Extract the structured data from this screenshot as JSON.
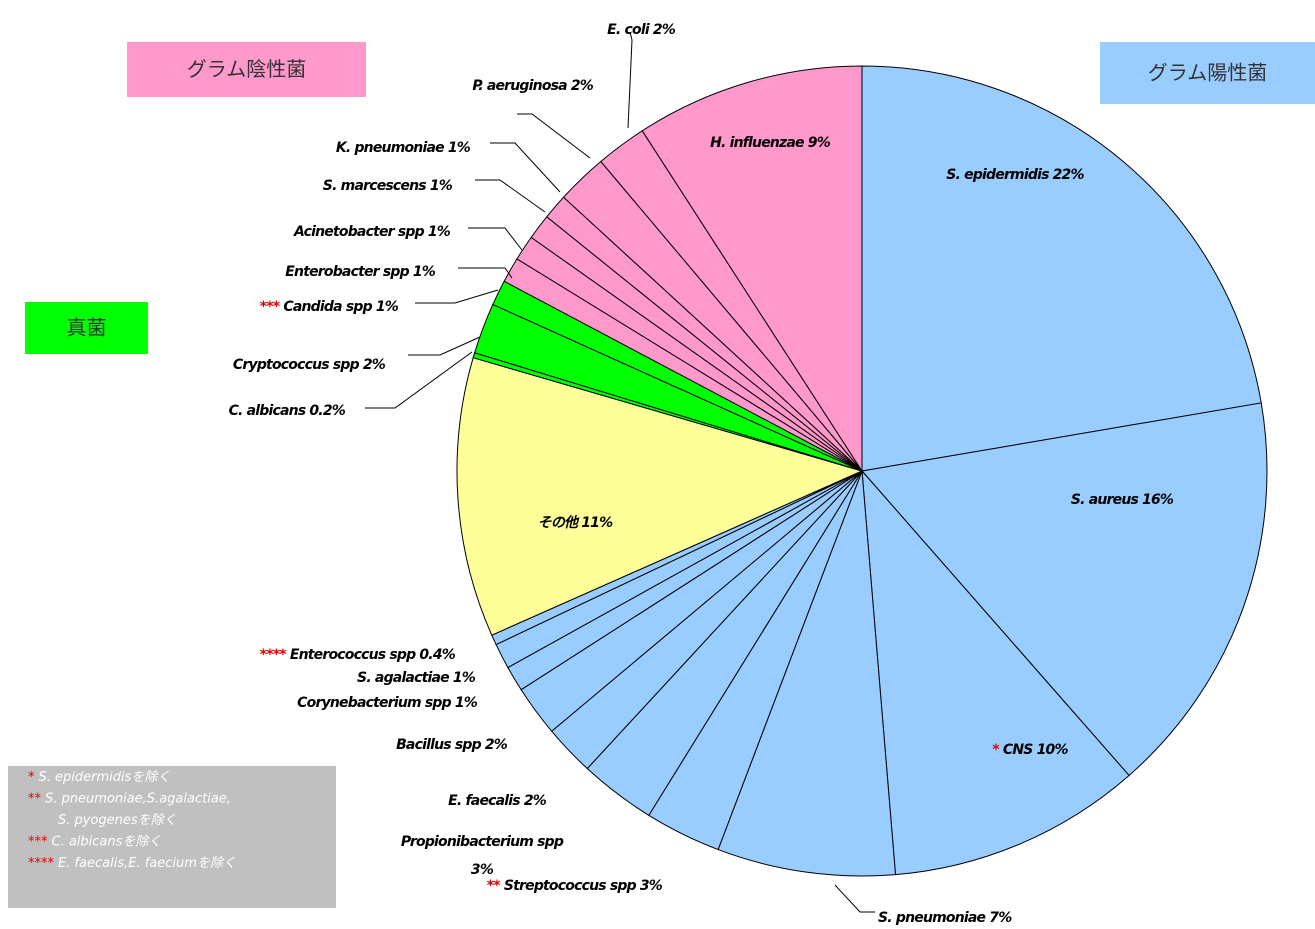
{
  "chart_data": {
    "type": "pie",
    "categories": [
      "S. epidermidis",
      "S. aureus",
      "CNS",
      "S. pneumoniae",
      "Streptococcus spp",
      "Propionibacterium spp",
      "E. faecalis",
      "Bacillus spp",
      "Corynebacterium spp",
      "S. agalactiae",
      "Enterococcus spp",
      "その他",
      "C. albicans",
      "Cryptococcus spp",
      "Candida spp",
      "Enterobacter spp",
      "Acinetobacter spp",
      "S. marcescens",
      "K. pneumoniae",
      "P. aeruginosa",
      "E. coli",
      "H. influenzae"
    ],
    "values": [
      22,
      16,
      10,
      7,
      3,
      3,
      2,
      2,
      1,
      1,
      0.4,
      11,
      0.2,
      2,
      1,
      1,
      1,
      1,
      1,
      2,
      2,
      9
    ],
    "value_labels": [
      "22%",
      "16%",
      "10%",
      "7%",
      "3%",
      "3%",
      "2%",
      "2%",
      "1%",
      "1%",
      "0.4%",
      "11%",
      "0.2%",
      "2%",
      "1%",
      "1%",
      "1%",
      "1%",
      "1%",
      "2%",
      "2%",
      "9%"
    ],
    "markers": [
      null,
      null,
      "*",
      null,
      "**",
      null,
      null,
      null,
      null,
      null,
      "****",
      null,
      null,
      null,
      "***",
      null,
      null,
      null,
      null,
      null,
      null,
      null
    ],
    "colors": [
      "#99ccff",
      "#99ccff",
      "#99ccff",
      "#99ccff",
      "#99ccff",
      "#99ccff",
      "#99ccff",
      "#99ccff",
      "#99ccff",
      "#99ccff",
      "#99ccff",
      "#ffff99",
      "#00ff00",
      "#00ff00",
      "#00ff00",
      "#ff99cc",
      "#ff99cc",
      "#ff99cc",
      "#ff99cc",
      "#ff99cc",
      "#ff99cc",
      "#ff99cc"
    ],
    "groups": [
      {
        "name": "グラム陰性菌",
        "color": "#ff99cc"
      },
      {
        "name": "グラム陽性菌",
        "color": "#99ccff"
      },
      {
        "name": "真菌",
        "color": "#00ff00"
      }
    ],
    "notes": [
      {
        "marker": "*",
        "lines": [
          "S. epidermidisを除く"
        ]
      },
      {
        "marker": "**",
        "lines": [
          "S. pneumoniae,S.agalactiae,",
          "S. pyogenesを除く"
        ]
      },
      {
        "marker": "***",
        "lines": [
          "C. albicansを除く"
        ]
      },
      {
        "marker": "****",
        "lines": [
          "E. faecalis,E. faeciumを除く"
        ]
      }
    ]
  }
}
